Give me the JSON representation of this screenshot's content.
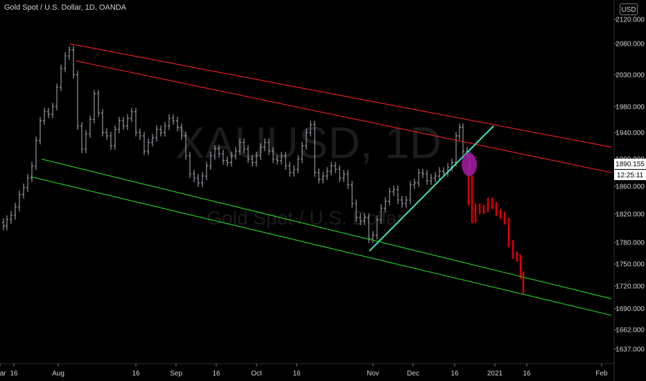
{
  "header": {
    "title": "Gold Spot / U.S. Dollar, 1D, OANDA",
    "currency": "USD"
  },
  "watermark": {
    "symbol": "XAUUSD, 1D",
    "description": "Gold Spot / U.S. Dollar"
  },
  "colors": {
    "background": "#000000",
    "candle": "#b2b5be",
    "projection": "#e00000",
    "channel_upper": "#e02020",
    "channel_lower": "#22c922",
    "trendline": "#3de8c0",
    "marker": "#9c1c9c",
    "axis_text": "#d1d4dc"
  },
  "chart_data": {
    "type": "line",
    "title": "Gold Spot / U.S. Dollar, 1D, OANDA",
    "y_axis": {
      "ticks": [
        "2120.000",
        "2080.000",
        "2030.000",
        "1980.000",
        "1940.000",
        "1900.000",
        "1860.000",
        "1820.000",
        "1780.000",
        "1750.000",
        "1720.000",
        "1690.000",
        "1662.000",
        "1637.000"
      ],
      "scale": "log"
    },
    "x_axis": {
      "ticks": [
        "16",
        "Aug",
        "16",
        "Sep",
        "16",
        "Oct",
        "16",
        "Nov",
        "Dec",
        "16",
        "2021",
        "16",
        "Feb",
        "Mar"
      ]
    },
    "last_price": "1890.155",
    "countdown": "12:25:11",
    "price_series": [
      {
        "d": 0,
        "v": 1808
      },
      {
        "d": 5,
        "v": 1803
      },
      {
        "d": 10,
        "v": 1812
      },
      {
        "d": 16,
        "v": 1818
      },
      {
        "d": 22,
        "v": 1830
      },
      {
        "d": 28,
        "v": 1848
      },
      {
        "d": 34,
        "v": 1858
      },
      {
        "d": 40,
        "v": 1872
      },
      {
        "d": 46,
        "v": 1890
      },
      {
        "d": 52,
        "v": 1928
      },
      {
        "d": 58,
        "v": 1958
      },
      {
        "d": 64,
        "v": 1972
      },
      {
        "d": 70,
        "v": 1968
      },
      {
        "d": 76,
        "v": 1980
      },
      {
        "d": 82,
        "v": 2010
      },
      {
        "d": 88,
        "v": 2040
      },
      {
        "d": 94,
        "v": 2060
      },
      {
        "d": 100,
        "v": 2070
      },
      {
        "d": 106,
        "v": 2030
      },
      {
        "d": 112,
        "v": 1950
      },
      {
        "d": 118,
        "v": 1915
      },
      {
        "d": 124,
        "v": 1938
      },
      {
        "d": 130,
        "v": 1960
      },
      {
        "d": 136,
        "v": 2000
      },
      {
        "d": 142,
        "v": 1970
      },
      {
        "d": 148,
        "v": 1940
      },
      {
        "d": 154,
        "v": 1935
      },
      {
        "d": 160,
        "v": 1920
      },
      {
        "d": 166,
        "v": 1945
      },
      {
        "d": 172,
        "v": 1958
      },
      {
        "d": 178,
        "v": 1950
      },
      {
        "d": 184,
        "v": 1962
      },
      {
        "d": 190,
        "v": 1972
      },
      {
        "d": 196,
        "v": 1940
      },
      {
        "d": 202,
        "v": 1935
      },
      {
        "d": 208,
        "v": 1912
      },
      {
        "d": 214,
        "v": 1925
      },
      {
        "d": 220,
        "v": 1932
      },
      {
        "d": 226,
        "v": 1945
      },
      {
        "d": 232,
        "v": 1940
      },
      {
        "d": 238,
        "v": 1950
      },
      {
        "d": 244,
        "v": 1962
      },
      {
        "d": 250,
        "v": 1958
      },
      {
        "d": 256,
        "v": 1948
      },
      {
        "d": 262,
        "v": 1935
      },
      {
        "d": 268,
        "v": 1905
      },
      {
        "d": 274,
        "v": 1878
      },
      {
        "d": 280,
        "v": 1872
      },
      {
        "d": 286,
        "v": 1865
      },
      {
        "d": 292,
        "v": 1875
      },
      {
        "d": 298,
        "v": 1890
      },
      {
        "d": 304,
        "v": 1905
      },
      {
        "d": 310,
        "v": 1915
      },
      {
        "d": 316,
        "v": 1908
      },
      {
        "d": 322,
        "v": 1898
      },
      {
        "d": 328,
        "v": 1895
      },
      {
        "d": 334,
        "v": 1905
      },
      {
        "d": 340,
        "v": 1912
      },
      {
        "d": 346,
        "v": 1925
      },
      {
        "d": 352,
        "v": 1915
      },
      {
        "d": 358,
        "v": 1900
      },
      {
        "d": 364,
        "v": 1895
      },
      {
        "d": 370,
        "v": 1905
      },
      {
        "d": 376,
        "v": 1918
      },
      {
        "d": 382,
        "v": 1925
      },
      {
        "d": 388,
        "v": 1912
      },
      {
        "d": 394,
        "v": 1900
      },
      {
        "d": 400,
        "v": 1898
      },
      {
        "d": 406,
        "v": 1905
      },
      {
        "d": 412,
        "v": 1890
      },
      {
        "d": 418,
        "v": 1880
      },
      {
        "d": 424,
        "v": 1885
      },
      {
        "d": 430,
        "v": 1900
      },
      {
        "d": 436,
        "v": 1920
      },
      {
        "d": 442,
        "v": 1940
      },
      {
        "d": 448,
        "v": 1952
      },
      {
        "d": 454,
        "v": 1880
      },
      {
        "d": 460,
        "v": 1870
      },
      {
        "d": 466,
        "v": 1875
      },
      {
        "d": 472,
        "v": 1882
      },
      {
        "d": 478,
        "v": 1890
      },
      {
        "d": 484,
        "v": 1885
      },
      {
        "d": 490,
        "v": 1872
      },
      {
        "d": 496,
        "v": 1878
      },
      {
        "d": 502,
        "v": 1862
      },
      {
        "d": 508,
        "v": 1835
      },
      {
        "d": 514,
        "v": 1815
      },
      {
        "d": 520,
        "v": 1810
      },
      {
        "d": 526,
        "v": 1815
      },
      {
        "d": 532,
        "v": 1785
      },
      {
        "d": 538,
        "v": 1790
      },
      {
        "d": 544,
        "v": 1812
      },
      {
        "d": 550,
        "v": 1828
      },
      {
        "d": 556,
        "v": 1838
      },
      {
        "d": 562,
        "v": 1852
      },
      {
        "d": 568,
        "v": 1855
      },
      {
        "d": 574,
        "v": 1840
      },
      {
        "d": 580,
        "v": 1835
      },
      {
        "d": 586,
        "v": 1840
      },
      {
        "d": 592,
        "v": 1862
      },
      {
        "d": 598,
        "v": 1865
      },
      {
        "d": 604,
        "v": 1880
      },
      {
        "d": 610,
        "v": 1878
      },
      {
        "d": 616,
        "v": 1868
      },
      {
        "d": 622,
        "v": 1872
      },
      {
        "d": 628,
        "v": 1875
      },
      {
        "d": 634,
        "v": 1882
      },
      {
        "d": 640,
        "v": 1880
      },
      {
        "d": 646,
        "v": 1888
      },
      {
        "d": 652,
        "v": 1895
      },
      {
        "d": 658,
        "v": 1935
      },
      {
        "d": 663,
        "v": 1948
      },
      {
        "d": 668,
        "v": 1912
      },
      {
        "d": 674,
        "v": 1905
      },
      {
        "d": 678,
        "v": 1890
      }
    ],
    "projection": [
      {
        "d": 676,
        "v": 1870
      },
      {
        "d": 681,
        "v": 1812
      },
      {
        "d": 686,
        "v": 1830
      },
      {
        "d": 692,
        "v": 1825
      },
      {
        "d": 698,
        "v": 1828
      },
      {
        "d": 704,
        "v": 1838
      },
      {
        "d": 710,
        "v": 1832
      },
      {
        "d": 716,
        "v": 1822
      },
      {
        "d": 722,
        "v": 1818
      },
      {
        "d": 728,
        "v": 1810
      },
      {
        "d": 734,
        "v": 1778
      },
      {
        "d": 740,
        "v": 1762
      },
      {
        "d": 746,
        "v": 1758
      },
      {
        "d": 751,
        "v": 1735
      },
      {
        "d": 755,
        "v": 1715
      }
    ],
    "channel_upper": [
      {
        "from": {
          "d": 100,
          "v": 2080
        },
        "to": {
          "d": 882,
          "v": 1918
        }
      },
      {
        "from": {
          "d": 110,
          "v": 2052
        },
        "to": {
          "d": 882,
          "v": 1880
        }
      }
    ],
    "channel_lower": [
      {
        "from": {
          "d": 60,
          "v": 1900
        },
        "to": {
          "d": 882,
          "v": 1703
        }
      },
      {
        "from": {
          "d": 44,
          "v": 1874
        },
        "to": {
          "d": 882,
          "v": 1681
        }
      }
    ],
    "trendline": {
      "from": {
        "d": 533,
        "v": 1768
      },
      "to": {
        "d": 712,
        "v": 1950
      }
    },
    "marker": {
      "d": 677,
      "v": 1892
    }
  }
}
